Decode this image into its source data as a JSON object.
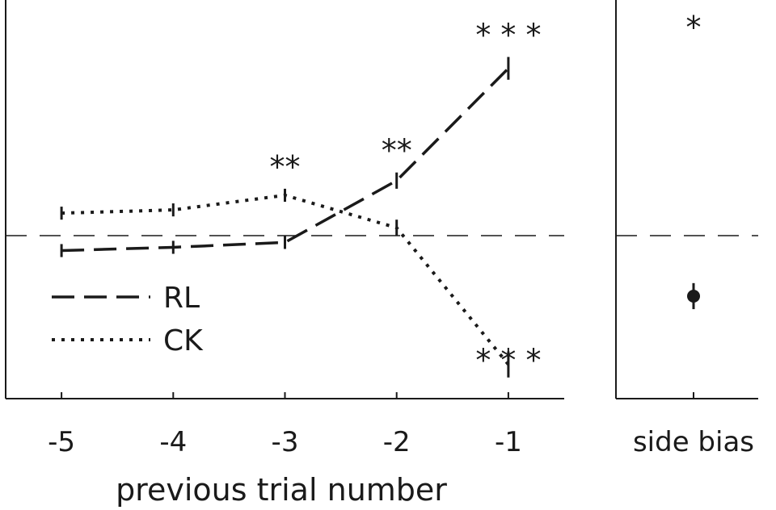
{
  "chart_data": [
    {
      "type": "line",
      "xlabel": "previous trial number",
      "ylabel": "",
      "x": [
        -5,
        -4,
        -3,
        -2,
        -1
      ],
      "xticks": [
        "-5",
        "-4",
        "-3",
        "-2",
        "-1"
      ],
      "xlim": [
        -5.5,
        -0.5
      ],
      "ylim": [
        -1.0,
        1.45
      ],
      "reference_line": 0,
      "series": [
        {
          "name": "RL",
          "line_style": "dashed",
          "values": [
            -0.09,
            -0.07,
            -0.04,
            0.34,
            1.03
          ],
          "errors": [
            0.04,
            0.04,
            0.04,
            0.05,
            0.07
          ],
          "significance": [
            "",
            "",
            "",
            "**",
            "* * *"
          ]
        },
        {
          "name": "CK",
          "line_style": "dotted",
          "values": [
            0.14,
            0.16,
            0.25,
            0.05,
            -0.79
          ],
          "errors": [
            0.04,
            0.04,
            0.04,
            0.05,
            0.08
          ],
          "significance": [
            "",
            "",
            "**",
            "",
            "* * *"
          ]
        }
      ],
      "legend_position": "lower-left"
    },
    {
      "type": "scatter",
      "category": "side bias",
      "value": -0.37,
      "error": 0.08,
      "significance": "*",
      "ylim": [
        -1.0,
        1.45
      ],
      "reference_line": 0
    }
  ],
  "colors": {
    "ink": "#1a1a1a",
    "background": "#ffffff"
  }
}
